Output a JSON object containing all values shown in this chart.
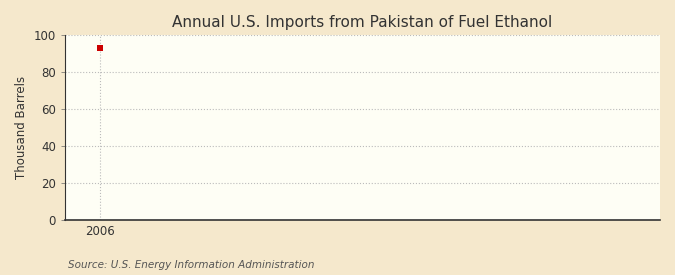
{
  "title": "Annual U.S. Imports from Pakistan of Fuel Ethanol",
  "ylabel": "Thousand Barrels",
  "source_text": "Source: U.S. Energy Information Administration",
  "fig_bg_color": "#f5e8cc",
  "plot_bg_color": "#fefef5",
  "data_x": [
    2006
  ],
  "data_y": [
    93
  ],
  "marker_color": "#cc0000",
  "marker_size": 4,
  "xlim": [
    2005.4,
    2015.5
  ],
  "ylim": [
    0,
    100
  ],
  "yticks": [
    0,
    20,
    40,
    60,
    80,
    100
  ],
  "xticks": [
    2006
  ],
  "grid_color": "#bbbbbb",
  "grid_linestyle": "dotted",
  "spine_color": "#333333",
  "title_fontsize": 11,
  "label_fontsize": 8.5,
  "tick_fontsize": 8.5,
  "source_fontsize": 7.5
}
